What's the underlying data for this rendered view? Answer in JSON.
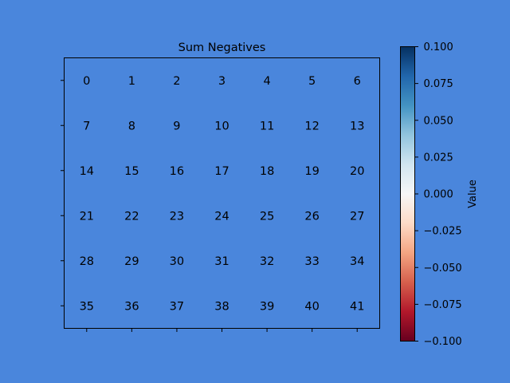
{
  "figure": {
    "background": "#4a86dc"
  },
  "chart_data": {
    "type": "heatmap",
    "title": "Sum Negatives",
    "xlabel": "",
    "ylabel": "",
    "rows": 6,
    "cols": 7,
    "cell_labels": [
      [
        "0",
        "1",
        "2",
        "3",
        "4",
        "5",
        "6"
      ],
      [
        "7",
        "8",
        "9",
        "10",
        "11",
        "12",
        "13"
      ],
      [
        "14",
        "15",
        "16",
        "17",
        "18",
        "19",
        "20"
      ],
      [
        "21",
        "22",
        "23",
        "24",
        "25",
        "26",
        "27"
      ],
      [
        "28",
        "29",
        "30",
        "31",
        "32",
        "33",
        "34"
      ],
      [
        "35",
        "36",
        "37",
        "38",
        "39",
        "40",
        "41"
      ]
    ],
    "colormap": "RdBu",
    "colorbar": {
      "label": "Value",
      "range": [
        -0.1,
        0.1
      ],
      "ticks": [
        0.1,
        0.075,
        0.05,
        0.025,
        0.0,
        -0.025,
        -0.05,
        -0.075,
        -0.1
      ],
      "tick_labels": [
        "0.100",
        "0.075",
        "0.050",
        "0.025",
        "0.000",
        "−0.025",
        "−0.050",
        "−0.075",
        "−0.100"
      ],
      "stops": [
        "#67001f",
        "#b2182b",
        "#d6604d",
        "#f4a582",
        "#fddbc7",
        "#f7f7f7",
        "#d1e5f0",
        "#92c5de",
        "#4393c3",
        "#2166ac",
        "#053061"
      ]
    },
    "x_tick_labels_visible": false,
    "y_tick_labels_visible": false
  }
}
